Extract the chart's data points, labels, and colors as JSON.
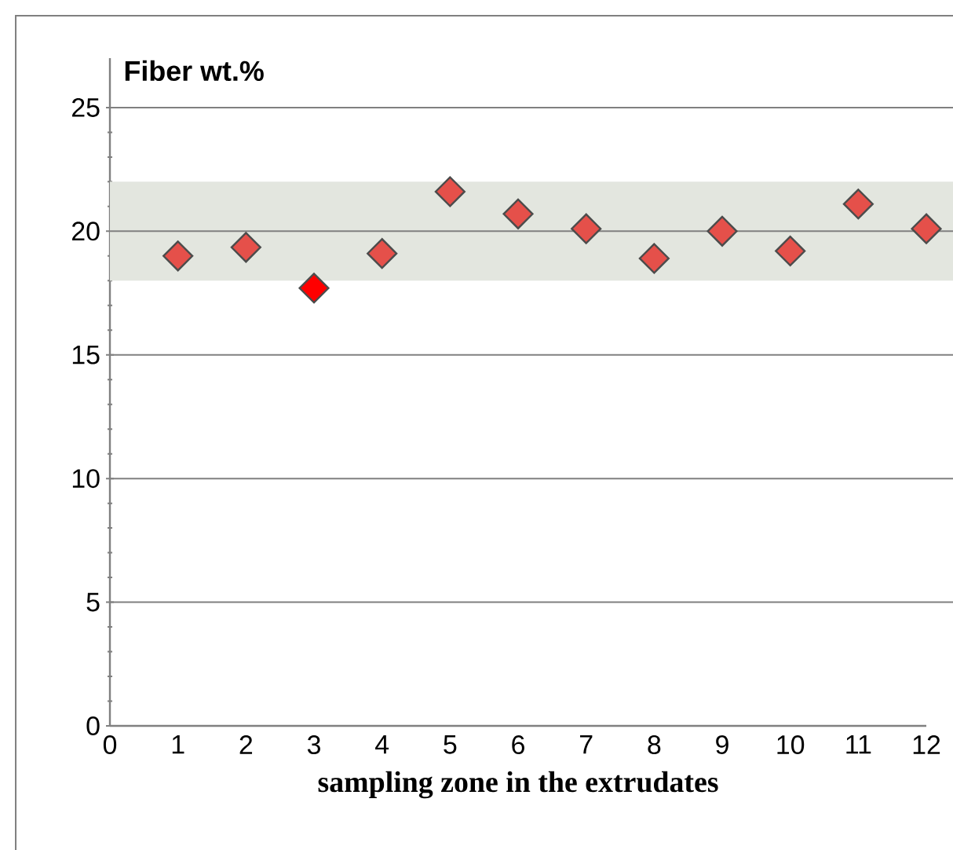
{
  "chart_data": {
    "type": "scatter",
    "ylabel": "Fiber wt.%",
    "xlabel": "sampling zone in the extrudates",
    "x": [
      1,
      2,
      3,
      4,
      5,
      6,
      7,
      8,
      9,
      10,
      11,
      12
    ],
    "values": [
      19.0,
      19.35,
      17.7,
      19.1,
      21.6,
      20.7,
      20.1,
      18.9,
      20.0,
      19.2,
      21.1,
      20.1
    ],
    "colors": [
      "#e5504a",
      "#e5504a",
      "#ff0000",
      "#e5504a",
      "#e5504a",
      "#e5504a",
      "#e5504a",
      "#e5504a",
      "#e5504a",
      "#e5504a",
      "#e5504a",
      "#e5504a"
    ],
    "bands": [
      {
        "axis": "y",
        "from": 18,
        "to": 22,
        "color": "#e3e6df"
      }
    ],
    "xlim": [
      0,
      12
    ],
    "ylim": [
      0,
      27
    ],
    "xticks": [
      0,
      1,
      2,
      3,
      4,
      5,
      6,
      7,
      8,
      9,
      10,
      11,
      12
    ],
    "yticks": [
      0,
      5,
      10,
      15,
      20,
      25
    ],
    "grid": "y",
    "marker": "diamond"
  }
}
